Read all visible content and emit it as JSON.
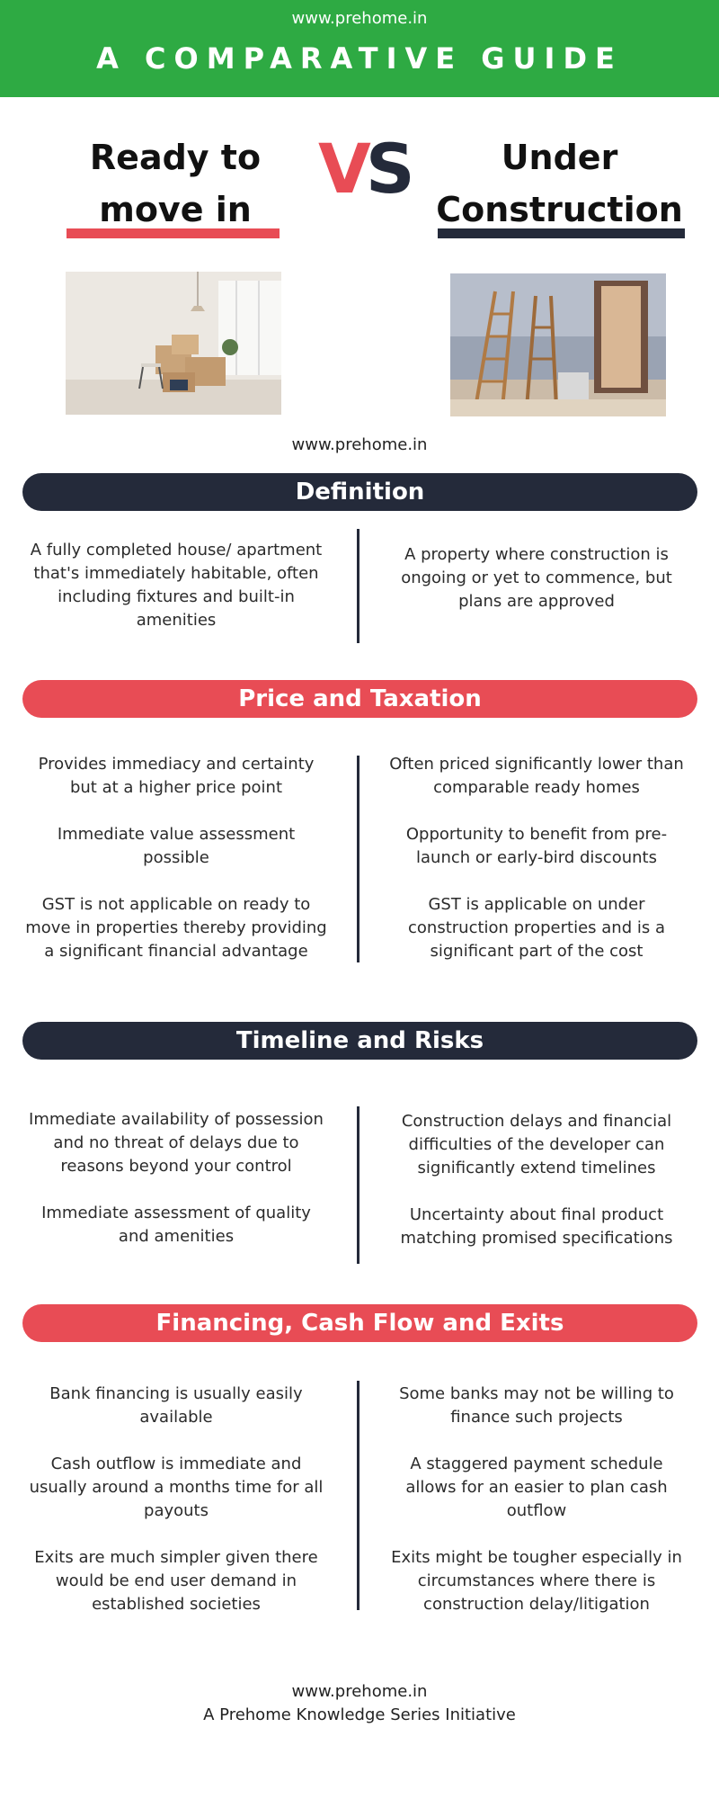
{
  "header": {
    "url": "www.prehome.in",
    "title": "A COMPARATIVE GUIDE",
    "color": "#2eaa43"
  },
  "hero": {
    "left_title": "Ready to move in",
    "right_title": "Under Construction",
    "vs_v": "V",
    "vs_s": "S",
    "accent_red": "#e84c55",
    "accent_navy": "#242a3a"
  },
  "mid_url": "www.prehome.in",
  "sections": {
    "definition": {
      "title": "Definition",
      "left": [
        "A fully completed house/ apartment that's immediately habitable, often including fixtures and built-in amenities"
      ],
      "right": [
        "A property where construction is ongoing or yet to commence, but plans are approved"
      ]
    },
    "price": {
      "title": "Price and Taxation",
      "left": [
        "Provides immediacy and certainty but at a higher price point",
        "Immediate value assessment possible",
        "GST is not applicable on ready to move in properties thereby providing a significant financial advantage"
      ],
      "right": [
        "Often priced significantly lower than comparable ready homes",
        "Opportunity to benefit from pre-launch or early-bird discounts",
        "GST is applicable on under construction properties and is a significant part of the cost"
      ]
    },
    "timeline": {
      "title": "Timeline and Risks",
      "left": [
        "Immediate availability of possession and no threat of delays due to reasons beyond your control",
        "Immediate assessment of quality and amenities"
      ],
      "right": [
        "Construction delays and financial difficulties of the developer can significantly extend timelines",
        "Uncertainty about final product matching promised specifications"
      ]
    },
    "financing": {
      "title": "Financing, Cash Flow and Exits",
      "left": [
        "Bank financing is usually easily available",
        "Cash outflow is immediate and usually around a months time for all payouts",
        "Exits are much simpler given there would be end user demand in established societies"
      ],
      "right": [
        "Some banks may not be willing to finance such projects",
        "A staggered payment schedule allows for an easier to plan cash outflow",
        "Exits might be tougher especially in circumstances where there is construction delay/litigation"
      ]
    }
  },
  "footer": {
    "url": "www.prehome.in",
    "tagline": "A Prehome Knowledge Series Initiative"
  }
}
